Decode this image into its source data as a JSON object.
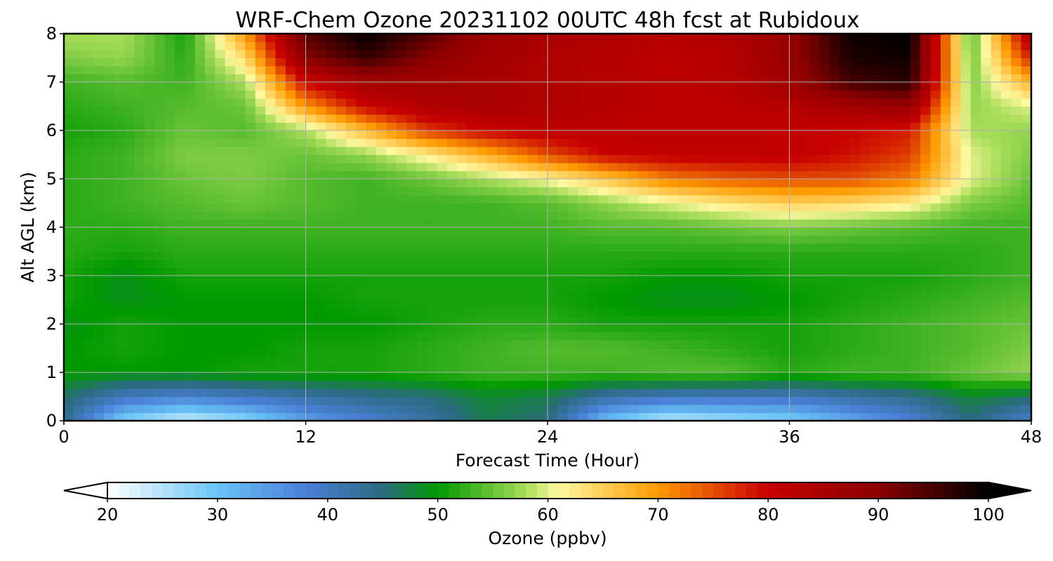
{
  "chart_data": {
    "type": "heatmap",
    "title": "WRF-Chem Ozone  20231102 00UTC 48h fcst at Rubidoux",
    "xlabel": "Forecast Time (Hour)",
    "ylabel": "Alt AGL (km)",
    "xlim": [
      0,
      48
    ],
    "ylim": [
      0,
      8
    ],
    "x_ticks": [
      0,
      12,
      24,
      36,
      48
    ],
    "y_ticks": [
      0,
      1,
      2,
      3,
      4,
      5,
      6,
      7,
      8
    ],
    "grid": true,
    "x": [
      0,
      3,
      6,
      9,
      12,
      15,
      18,
      21,
      24,
      27,
      30,
      33,
      36,
      39,
      42,
      45,
      48
    ],
    "y": [
      0,
      0.5,
      1,
      1.5,
      2,
      2.5,
      3,
      3.5,
      4,
      4.5,
      5,
      5.5,
      6,
      6.5,
      7,
      7.5,
      8
    ],
    "values": [
      [
        44,
        28,
        23,
        27,
        34,
        38,
        42,
        47,
        45,
        30,
        24,
        26,
        28,
        33,
        38,
        45,
        38
      ],
      [
        46,
        40,
        38,
        40,
        42,
        44,
        45,
        48,
        47,
        42,
        40,
        40,
        40,
        42,
        44,
        48,
        46
      ],
      [
        50,
        50,
        50,
        51,
        51,
        51,
        52,
        53,
        53,
        53,
        54,
        54,
        52,
        53,
        53,
        55,
        57
      ],
      [
        50,
        51,
        50,
        50,
        51,
        51,
        52,
        53,
        54,
        54,
        53,
        52,
        51,
        52,
        53,
        54,
        56
      ],
      [
        49,
        51,
        50,
        50,
        50,
        50,
        51,
        52,
        52,
        51,
        51,
        51,
        51,
        52,
        53,
        54,
        55
      ],
      [
        51,
        49,
        50,
        50,
        50,
        51,
        51,
        51,
        51,
        50,
        49,
        49,
        50,
        51,
        52,
        53,
        54
      ],
      [
        51,
        49,
        51,
        51,
        51,
        51,
        51,
        51,
        51,
        51,
        50,
        50,
        51,
        51,
        51,
        52,
        53
      ],
      [
        52,
        51,
        52,
        52,
        52,
        52,
        52,
        52,
        52,
        52,
        52,
        52,
        52,
        52,
        52,
        52,
        53
      ],
      [
        52,
        52,
        53,
        53,
        53,
        53,
        53,
        53,
        53,
        54,
        54,
        55,
        56,
        55,
        54,
        53,
        53
      ],
      [
        52,
        53,
        54,
        55,
        54,
        53,
        53,
        53,
        54,
        57,
        60,
        63,
        65,
        64,
        62,
        56,
        54
      ],
      [
        52,
        53,
        55,
        56,
        54,
        53,
        55,
        58,
        61,
        66,
        72,
        74,
        75,
        75,
        72,
        60,
        55
      ],
      [
        52,
        53,
        56,
        56,
        55,
        57,
        62,
        68,
        75,
        80,
        81,
        81,
        81,
        79,
        76,
        60,
        56
      ],
      [
        51,
        52,
        55,
        54,
        58,
        67,
        76,
        80,
        82,
        82,
        82,
        82,
        81,
        80,
        78,
        58,
        57
      ],
      [
        52,
        53,
        54,
        55,
        70,
        80,
        84,
        85,
        84,
        83,
        82,
        82,
        83,
        86,
        88,
        57,
        60
      ],
      [
        53,
        54,
        53,
        58,
        80,
        86,
        86,
        85,
        84,
        83,
        82,
        83,
        87,
        95,
        97,
        56,
        68
      ],
      [
        56,
        57,
        52,
        64,
        90,
        96,
        90,
        86,
        84,
        83,
        82,
        83,
        88,
        98,
        99,
        55,
        78
      ],
      [
        58,
        58,
        51,
        70,
        94,
        100,
        94,
        87,
        85,
        84,
        83,
        84,
        88,
        99,
        100,
        54,
        85
      ]
    ],
    "colorbar": {
      "label": "Ozone  (ppbv)",
      "min": 20,
      "max": 100,
      "ticks": [
        20,
        30,
        40,
        50,
        60,
        70,
        80,
        90,
        100
      ],
      "extend": "both",
      "colors": [
        "#ffffff",
        "#68c4f7",
        "#4a7fd6",
        "#2b6a80",
        "#009900",
        "#a9dd5a",
        "#fff89f",
        "#ff9a00",
        "#c80000",
        "#8b0000",
        "#000000"
      ],
      "stops": [
        20,
        30,
        38,
        45,
        50,
        58,
        61,
        70,
        80,
        90,
        100
      ]
    }
  }
}
